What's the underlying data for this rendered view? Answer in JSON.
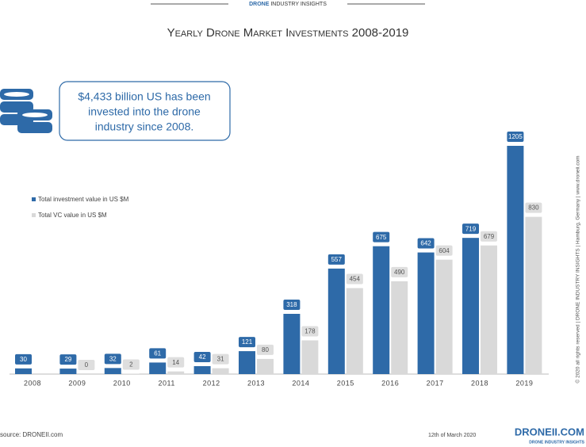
{
  "header": {
    "brand": "DRONE",
    "rest": "INDUSTRY INSIGHTS"
  },
  "chart_data": {
    "type": "bar",
    "title": "Yearly Drone Market Investments 2008-2019",
    "categories": [
      "2008",
      "2009",
      "2010",
      "2011",
      "2012",
      "2013",
      "2014",
      "2015",
      "2016",
      "2017",
      "2018",
      "2019"
    ],
    "series": [
      {
        "name": "Total investment value in US $M",
        "color": "#2e6aa8",
        "values": [
          30,
          29,
          32,
          61,
          42,
          121,
          318,
          557,
          675,
          642,
          719,
          1205
        ]
      },
      {
        "name": "Total VC value in US $M",
        "color": "#d9d9d9",
        "values": [
          null,
          0,
          2,
          14,
          31,
          80,
          178,
          454,
          490,
          604,
          679,
          830
        ]
      }
    ]
  },
  "callout": [
    "$4,433 billion US has been",
    "invested into the drone",
    "industry since 2008."
  ],
  "footer": {
    "source": "source: DRONEII.com",
    "date": "12th of March 2020",
    "logo": "DRONEII.COM",
    "logo_sub": "DRONE INDUSTRY INSIGHTS",
    "copyright": "© 2020 all rights reserved | DRONE INDUSTRY INSIGHTS | Hamburg, Germany | www.droneii.com"
  }
}
